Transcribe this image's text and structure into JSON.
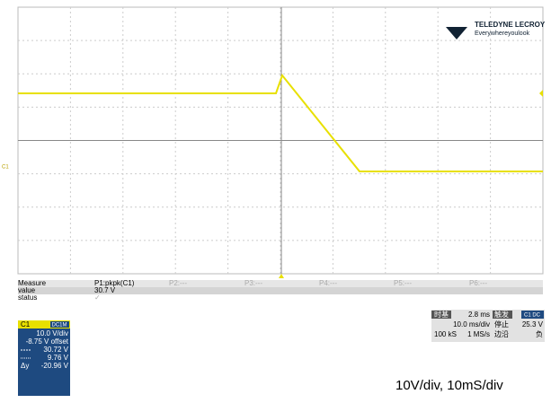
{
  "logo": {
    "brand": "TELEDYNE LECROY",
    "tagline": "Everywhereyoulook"
  },
  "channel_marker": "C1",
  "measure": {
    "header": [
      "Measure",
      "P1:pkpk(C1)",
      "P2:---",
      "P3:---",
      "P4:---",
      "P5:---",
      "P6:---"
    ],
    "value": [
      "value",
      "30.7 V"
    ],
    "status": [
      "status",
      "✓"
    ]
  },
  "channel": {
    "name": "C1",
    "coupling": "DC1M",
    "scale": "10.0 V/div",
    "offset": "-8.75 V offset",
    "cursor1": "30.72 V",
    "cursor2": "9.76 V",
    "delta_label": "Δy",
    "delta": "-20.96 V"
  },
  "timebase": {
    "label": "时基",
    "delay": "2.8 ms",
    "trigger_label": "触发",
    "trigger_source": "C1 DC",
    "time_div": "10.0 ms/div",
    "state": "停止",
    "level": "25.3 V",
    "samples": "100 kS",
    "rate": "1 MS/s",
    "edge_label": "边沿",
    "slope": "负"
  },
  "caption": "10V/div, 10mS/div"
}
